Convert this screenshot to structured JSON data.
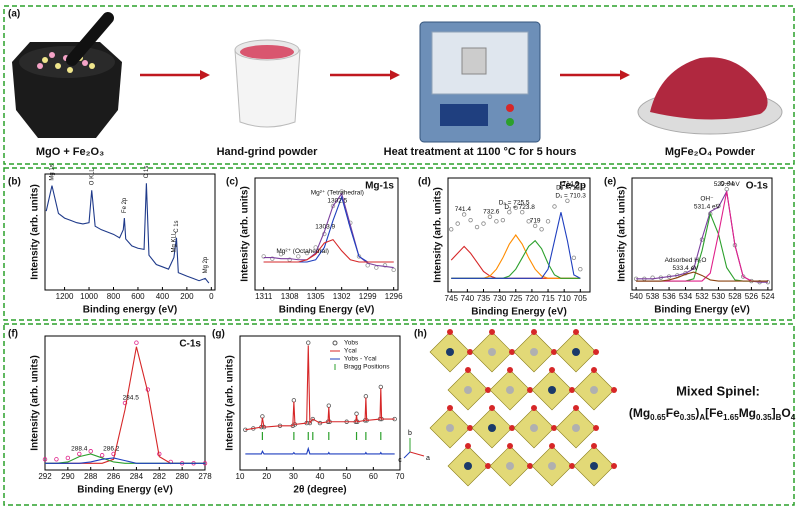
{
  "panel_a": {
    "label": "(a)",
    "steps": [
      "MgO + Fe₂O₃",
      "Hand-grind powder",
      "Heat treatment at 1100 °C for 5 hours",
      "MgFe₂O₄ Powder"
    ]
  },
  "chart_data": [
    {
      "type": "spectrum",
      "panel": "(b)",
      "xlabel": "Binding energy (eV)",
      "ylabel": "Intensity (arb. units)",
      "xlim": [
        1360,
        -30
      ],
      "xticks": [
        1200,
        1000,
        800,
        600,
        400,
        200,
        0
      ],
      "ylim": [
        0,
        100
      ],
      "vertical_annotations": true,
      "x": [
        1350,
        1303,
        1250,
        1200,
        1150,
        1100,
        1050,
        1000,
        978,
        950,
        900,
        850,
        800,
        750,
        720,
        711,
        700,
        650,
        600,
        550,
        531,
        510,
        450,
        400,
        350,
        306,
        285,
        270,
        200,
        150,
        100,
        50,
        20
      ],
      "series": [
        {
          "style": "line",
          "color": "#1f3a8a",
          "values": [
            68,
            90,
            66,
            62,
            60,
            58,
            57,
            58,
            86,
            55,
            52,
            50,
            48,
            45,
            52,
            62,
            44,
            38,
            36,
            35,
            92,
            30,
            22,
            20,
            18,
            28,
            45,
            15,
            12,
            10,
            8,
            10,
            6
          ]
        }
      ],
      "annotations": [
        {
          "text": "Mg 1s",
          "x": 1303
        },
        {
          "text": "O KLL",
          "x": 978
        },
        {
          "text": "Fe 2p",
          "x": 711
        },
        {
          "text": "O 1s",
          "x": 531
        },
        {
          "text": "Mg KLL",
          "x": 306
        },
        {
          "text": "C 1s",
          "x": 285
        },
        {
          "text": "Mg 2p",
          "x": 50
        }
      ]
    },
    {
      "type": "spectrum",
      "panel": "(c)",
      "tag": "Mg-1s",
      "xlabel": "Binding Energy (eV)",
      "ylabel": "Intensity (arb. units)",
      "xlim": [
        1312,
        1295.5
      ],
      "xticks": [
        1311,
        1308,
        1305,
        1302,
        1299,
        1296
      ],
      "ylim": [
        0,
        100
      ],
      "x": [
        1311,
        1310,
        1309,
        1308,
        1307,
        1306,
        1305,
        1304,
        1303,
        1302,
        1301,
        1300,
        1299,
        1298,
        1297,
        1296
      ],
      "series": [
        {
          "style": "markers",
          "color": "#999999",
          "values": [
            30,
            28,
            32,
            27,
            30,
            33,
            38,
            50,
            75,
            88,
            60,
            30,
            22,
            20,
            22,
            18
          ]
        },
        {
          "style": "line",
          "color": "#7b3f9e",
          "values": [
            29,
            29,
            28,
            28,
            27,
            27,
            33,
            52,
            75,
            86,
            58,
            30,
            24,
            22,
            21,
            20
          ]
        },
        {
          "style": "line",
          "color": "#1f3fbf",
          "values": [
            25,
            25,
            25,
            25,
            25,
            25,
            27,
            38,
            62,
            83,
            55,
            30,
            25,
            25,
            25,
            25
          ]
        },
        {
          "style": "line",
          "color": "#d62728",
          "values": [
            25,
            25,
            25,
            25,
            25,
            27,
            32,
            42,
            45,
            35,
            27,
            25,
            25,
            25,
            25,
            25
          ]
        }
      ],
      "annotations": [
        {
          "text": "1302.5",
          "x": 1302.5
        },
        {
          "text": "Mg²⁺ (Tetrahedral)",
          "x": 1302.5
        },
        {
          "text": "1303.9",
          "x": 1303.9
        },
        {
          "text": "Mg²⁺ (Octahedral)",
          "x": 1306.5
        }
      ]
    },
    {
      "type": "spectrum",
      "panel": "(d)",
      "tag": "Fe-2p",
      "xlabel": "Binding Energy (eV)",
      "ylabel": "Intensity (arb. units)",
      "xlim": [
        746,
        702
      ],
      "xticks": [
        745,
        740,
        735,
        730,
        725,
        720,
        715,
        710,
        705
      ],
      "ylim": [
        0,
        100
      ],
      "x": [
        745,
        743,
        741,
        739,
        737,
        735,
        733,
        731,
        729,
        727,
        725,
        723,
        721,
        719,
        717,
        715,
        713,
        711,
        709,
        707,
        705
      ],
      "series": [
        {
          "style": "markers",
          "color": "#888888",
          "values": [
            55,
            60,
            68,
            63,
            57,
            60,
            66,
            62,
            63,
            70,
            74,
            70,
            62,
            58,
            55,
            62,
            75,
            92,
            80,
            30,
            20
          ]
        },
        {
          "style": "line",
          "color": "#d62728",
          "values": [
            28,
            34,
            40,
            34,
            26,
            18,
            14,
            12,
            12,
            12,
            12,
            12,
            12,
            12,
            12,
            12,
            12,
            12,
            12,
            12,
            12
          ]
        },
        {
          "style": "line",
          "color": "#ff8c00",
          "values": [
            12,
            12,
            12,
            12,
            12,
            12,
            14,
            20,
            30,
            42,
            50,
            42,
            30,
            20,
            14,
            12,
            12,
            12,
            12,
            12,
            12
          ]
        },
        {
          "style": "line",
          "color": "#2ca02c",
          "values": [
            12,
            12,
            12,
            12,
            12,
            12,
            12,
            12,
            12,
            14,
            20,
            30,
            40,
            45,
            38,
            25,
            15,
            12,
            12,
            12,
            12
          ]
        },
        {
          "style": "line",
          "color": "#1f3fbf",
          "values": [
            12,
            12,
            12,
            12,
            12,
            12,
            12,
            12,
            12,
            12,
            12,
            12,
            12,
            12,
            12,
            20,
            45,
            70,
            45,
            15,
            12
          ]
        }
      ],
      "annotations": [
        {
          "text": "741.4",
          "x": 741.4
        },
        {
          "text": "732.6",
          "x": 732.6
        },
        {
          "text": "Dₐ = 725.5",
          "x": 725.5
        },
        {
          "text": "D₁ = 723.8",
          "x": 723.8
        },
        {
          "text": "719",
          "x": 719
        },
        {
          "text": "D₁ = 710.3",
          "x": 708
        },
        {
          "text": "D₂ =712.2",
          "x": 708
        },
        {
          "text": "714.8",
          "x": 708
        }
      ]
    },
    {
      "type": "spectrum",
      "panel": "(e)",
      "tag": "O-1s",
      "xlabel": "Binding Energy (eV)",
      "ylabel": "Intensity (arb. units)",
      "xlim": [
        540.5,
        523.5
      ],
      "xticks": [
        540,
        538,
        536,
        534,
        532,
        530,
        528,
        526,
        524
      ],
      "ylim": [
        0,
        100
      ],
      "x": [
        540,
        539,
        538,
        537,
        536,
        535,
        534,
        533,
        532,
        531,
        530,
        529,
        528,
        527,
        526,
        525,
        524
      ],
      "series": [
        {
          "style": "markers",
          "color": "#888888",
          "values": [
            10,
            10,
            11,
            11,
            12,
            13,
            15,
            20,
            45,
            68,
            75,
            90,
            40,
            12,
            8,
            7,
            7
          ]
        },
        {
          "style": "line",
          "color": "#7b3f9e",
          "values": [
            10,
            10,
            10,
            11,
            12,
            13,
            15,
            19,
            46,
            70,
            74,
            88,
            40,
            12,
            8,
            7,
            7
          ]
        },
        {
          "style": "line",
          "color": "#2ca02c",
          "values": [
            8,
            8,
            8,
            8,
            8,
            8,
            8,
            10,
            35,
            68,
            50,
            20,
            9,
            8,
            8,
            8,
            8
          ]
        },
        {
          "style": "line",
          "color": "#e0218a",
          "values": [
            8,
            8,
            8,
            8,
            8,
            8,
            8,
            8,
            8,
            15,
            50,
            88,
            40,
            12,
            8,
            8,
            8
          ]
        },
        {
          "style": "line",
          "color": "#8b4513",
          "values": [
            8,
            8,
            8,
            8,
            9,
            11,
            14,
            16,
            13,
            9,
            8,
            8,
            8,
            8,
            8,
            8,
            8
          ]
        }
      ],
      "annotations": [
        {
          "text": "533.4 eV",
          "x": 534
        },
        {
          "text": "Adsorbed H₂O",
          "x": 534
        },
        {
          "text": "531.4 eV",
          "x": 531.4
        },
        {
          "text": "OH⁻",
          "x": 531.4
        },
        {
          "text": "529.6 eV",
          "x": 529
        },
        {
          "text": "O–M",
          "x": 529
        }
      ]
    },
    {
      "type": "spectrum",
      "panel": "(f)",
      "tag": "C-1s",
      "xlabel": "Binding Energy (eV)",
      "ylabel": "Intensity (arb. units)",
      "xlim": [
        292,
        278
      ],
      "xticks": [
        292,
        290,
        288,
        286,
        284,
        282,
        280,
        278
      ],
      "ylim": [
        0,
        100
      ],
      "x": [
        292,
        291,
        290,
        289,
        288,
        287,
        286,
        285,
        284,
        283,
        282,
        281,
        280,
        279,
        278
      ],
      "series": [
        {
          "style": "markers",
          "color": "#e0218a",
          "values": [
            8,
            8,
            9,
            12,
            14,
            11,
            12,
            50,
            95,
            60,
            12,
            6,
            5,
            5,
            5
          ]
        },
        {
          "style": "line",
          "color": "#d62728",
          "values": [
            5,
            5,
            5,
            5,
            5,
            5,
            8,
            45,
            92,
            58,
            10,
            5,
            5,
            5,
            5
          ]
        },
        {
          "style": "line",
          "color": "#2ca02c",
          "values": [
            5,
            5,
            6,
            10,
            12,
            9,
            6,
            5,
            5,
            5,
            5,
            5,
            5,
            5,
            5
          ]
        },
        {
          "style": "line",
          "color": "#1f3fbf",
          "values": [
            5,
            5,
            5,
            5,
            6,
            8,
            9,
            7,
            5,
            5,
            5,
            5,
            5,
            5,
            5
          ]
        }
      ],
      "annotations": [
        {
          "text": "288.4",
          "x": 289
        },
        {
          "text": "286.2",
          "x": 286.2
        },
        {
          "text": "284.5",
          "x": 284.5
        }
      ]
    },
    {
      "type": "xrd",
      "panel": "(g)",
      "xlabel": "2θ (degree)",
      "ylabel": "Intensity (arb. units)",
      "xlim": [
        10,
        70
      ],
      "xticks": [
        10,
        20,
        30,
        40,
        50,
        60,
        70
      ],
      "ylim": [
        0,
        100
      ],
      "x": [
        12,
        15,
        18,
        18.4,
        19,
        25,
        29.8,
        30.2,
        30.6,
        35,
        35.6,
        36.2,
        37.3,
        40,
        43,
        43.3,
        43.6,
        50,
        53.4,
        53.7,
        54,
        56.9,
        57.2,
        57.5,
        62.5,
        62.8,
        63.1,
        68
      ],
      "series": [
        {
          "name": "Yobs",
          "style": "markers",
          "color": "#555555",
          "values": [
            30,
            31,
            32,
            40,
            32,
            33,
            33,
            52,
            34,
            35,
            95,
            35,
            38,
            35,
            36,
            48,
            36,
            36,
            36,
            42,
            36,
            37,
            55,
            37,
            38,
            62,
            38,
            38
          ]
        },
        {
          "name": "Ycal",
          "style": "line",
          "color": "#d62728",
          "values": [
            30,
            31,
            32,
            39,
            32,
            33,
            33,
            51,
            34,
            35,
            93,
            35,
            38,
            35,
            36,
            47,
            36,
            36,
            36,
            41,
            36,
            37,
            54,
            37,
            38,
            61,
            38,
            38
          ]
        },
        {
          "name": "Yobs - Ycal",
          "style": "line",
          "color": "#1f3fbf",
          "values": [
            12,
            12,
            12,
            14,
            12,
            12,
            12,
            13,
            12,
            12,
            16,
            12,
            12,
            12,
            12,
            13,
            12,
            12,
            12,
            12,
            12,
            12,
            13,
            12,
            12,
            13,
            12,
            12
          ]
        }
      ],
      "bragg": {
        "name": "Bragg Positions",
        "color": "#2ca02c",
        "positions": [
          18.4,
          30.2,
          35.6,
          37.3,
          43.3,
          53.7,
          57.2,
          62.8
        ]
      }
    }
  ],
  "panel_h": {
    "label": "(h)",
    "title": "Mixed Spinel:",
    "formula": [
      "(Mg",
      "0.65",
      "Fe",
      "0.35",
      ")",
      "A",
      "[Fe",
      "1.65",
      "Mg",
      "0.35",
      "]",
      "B",
      "O",
      "4"
    ],
    "axes": [
      "b",
      "a",
      "c"
    ]
  }
}
